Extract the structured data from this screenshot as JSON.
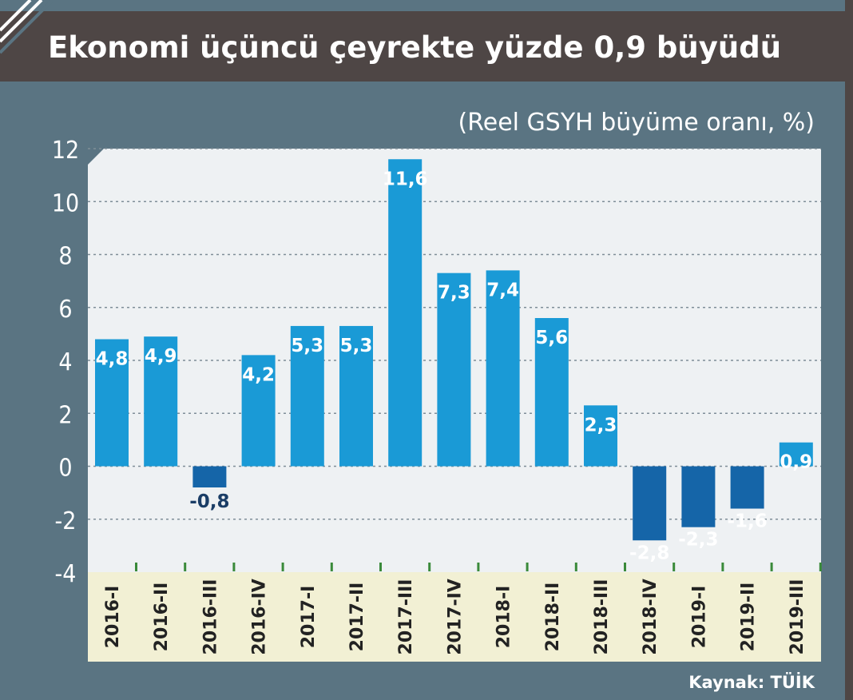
{
  "header": {
    "title": "Ekonomi üçüncü çeyrekte yüzde 0,9 büyüdü"
  },
  "source": "Kaynak: TÜİK",
  "colors": {
    "background": "#5a7482",
    "title_bar": "#4e4645",
    "plot_area": "#eef1f3",
    "category_band": "#f2f0d4",
    "positive_bar": "#1a9ad6",
    "negative_bar": "#1565a8",
    "tick_mark": "#3a8a3a"
  },
  "chart_data": {
    "type": "bar",
    "title": "Ekonomi üçüncü çeyrekte yüzde 0,9 büyüdü",
    "subtitle": "(Reel GSYH büyüme oranı, %)",
    "xlabel": "",
    "ylabel": "",
    "ylim": [
      -4,
      12
    ],
    "yticks": [
      12,
      10,
      8,
      6,
      4,
      2,
      0,
      -2,
      -4
    ],
    "grid": true,
    "categories": [
      "2016-I",
      "2016-II",
      "2016-III",
      "2016-IV",
      "2017-I",
      "2017-II",
      "2017-III",
      "2017-IV",
      "2018-I",
      "2018-II",
      "2018-III",
      "2018-IV",
      "2019-I",
      "2019-II",
      "2019-III"
    ],
    "values": [
      4.8,
      4.9,
      -0.8,
      4.2,
      5.3,
      5.3,
      11.6,
      7.3,
      7.4,
      5.6,
      2.3,
      -2.8,
      -2.3,
      -1.6,
      0.9
    ],
    "value_labels": [
      "4,8",
      "4,9",
      "-0,8",
      "4,2",
      "5,3",
      "5,3",
      "11,6",
      "7,3",
      "7,4",
      "5,6",
      "2,3",
      "-2,8",
      "-2,3",
      "-1,6",
      "0,9"
    ]
  }
}
